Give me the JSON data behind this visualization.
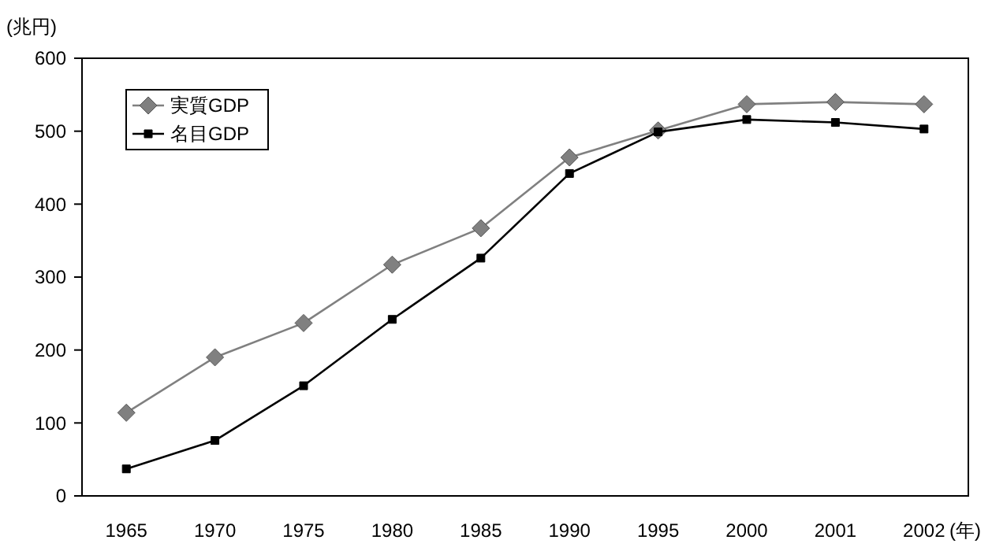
{
  "chart_data": {
    "type": "line",
    "ylabel": "(兆円)",
    "xlabel": "(年)",
    "categories": [
      "1965",
      "1970",
      "1975",
      "1980",
      "1985",
      "1990",
      "1995",
      "2000",
      "2001",
      "2002"
    ],
    "series": [
      {
        "name": "実質GDP",
        "color": "#808080",
        "marker": "diamond",
        "values": [
          114,
          190,
          237,
          317,
          367,
          464,
          501,
          537,
          540,
          537
        ]
      },
      {
        "name": "名目GDP",
        "color": "#000000",
        "marker": "square",
        "values": [
          37,
          76,
          151,
          242,
          326,
          442,
          499,
          516,
          512,
          503
        ]
      }
    ],
    "ylim": [
      0,
      600
    ],
    "yticks": [
      0,
      100,
      200,
      300,
      400,
      500,
      600
    ],
    "grid": false,
    "legend": "top left"
  }
}
